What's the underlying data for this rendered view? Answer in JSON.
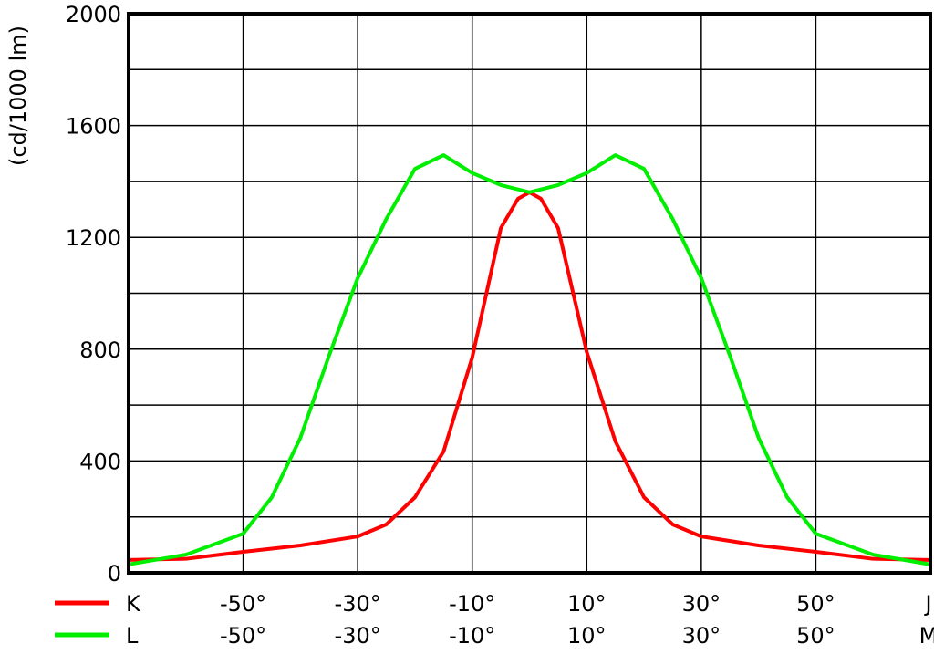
{
  "chart_data": {
    "type": "line",
    "title": "",
    "ylabel": "(cd/1000 lm)",
    "xlabel": "",
    "xlim": [
      -70,
      70
    ],
    "ylim": [
      0,
      2000
    ],
    "grid": true,
    "y_ticks": [
      0,
      400,
      800,
      1200,
      1600,
      2000
    ],
    "y_gridlines_every": 200,
    "x_gridlines_every": 20,
    "x_axis_rows": [
      {
        "legend": "K",
        "color": "#ff0000",
        "ticks": [
          "-50°",
          "-30°",
          "-10°",
          "10°",
          "30°",
          "50°",
          "J"
        ],
        "tick_values": [
          -50,
          -30,
          -10,
          10,
          30,
          50,
          70
        ]
      },
      {
        "legend": "L",
        "color": "#00ee00",
        "ticks": [
          "-50°",
          "-30°",
          "-10°",
          "10°",
          "30°",
          "50°",
          "M"
        ],
        "tick_values": [
          -50,
          -30,
          -10,
          10,
          30,
          50,
          70
        ]
      }
    ],
    "series": [
      {
        "name": "K",
        "color": "#ff0000",
        "x": [
          -70,
          -60,
          -50,
          -40,
          -30,
          -25,
          -20,
          -15,
          -10,
          -5,
          -2,
          0,
          2,
          5,
          10,
          15,
          20,
          25,
          30,
          40,
          50,
          60,
          70
        ],
        "values": [
          46,
          50,
          75,
          98,
          130,
          173,
          270,
          434,
          770,
          1233,
          1338,
          1361,
          1338,
          1233,
          790,
          470,
          270,
          173,
          130,
          98,
          75,
          50,
          46
        ]
      },
      {
        "name": "L",
        "color": "#00ee00",
        "x": [
          -70,
          -60,
          -50,
          -45,
          -40,
          -35,
          -30,
          -25,
          -20,
          -15,
          -10,
          -5,
          0,
          5,
          10,
          15,
          20,
          25,
          30,
          35,
          40,
          45,
          50,
          60,
          70
        ],
        "values": [
          30,
          65,
          140,
          270,
          483,
          777,
          1054,
          1266,
          1445,
          1494,
          1430,
          1387,
          1361,
          1387,
          1430,
          1494,
          1445,
          1266,
          1054,
          777,
          483,
          270,
          140,
          65,
          30
        ]
      }
    ]
  }
}
